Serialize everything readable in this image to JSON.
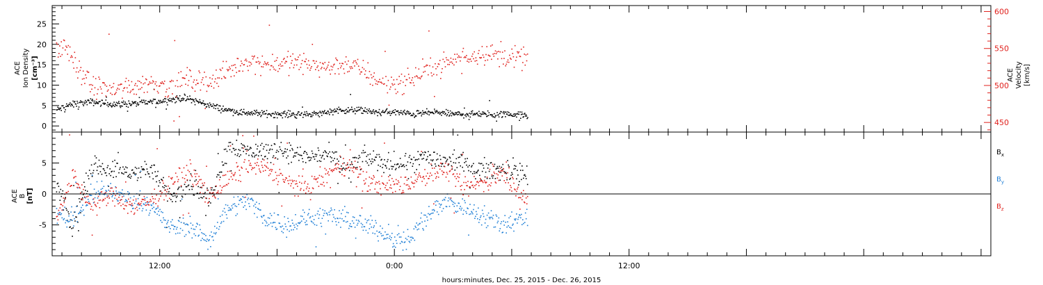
{
  "chart_data": [
    {
      "type": "scatter",
      "title": "",
      "xlabel": "hours:minutes, Dec. 25, 2015 - Dec. 26, 2015",
      "ylabel_left": [
        "ACE",
        "Ion Density",
        "[cm⁻³]"
      ],
      "ylabel_right": [
        "ACE",
        "Velocity",
        "[km/s]"
      ],
      "x_range_hours": [
        6.5,
        54.5
      ],
      "x_tick_labels": [
        {
          "hour": 12,
          "label": "12:00"
        },
        {
          "hour": 24,
          "label": "0:00"
        },
        {
          "hour": 36,
          "label": "12:00"
        }
      ],
      "left_axis": {
        "ylim": [
          -1.5,
          29.5
        ],
        "ticks": [
          0,
          5,
          10,
          15,
          20,
          25
        ],
        "color": "#000000"
      },
      "right_axis": {
        "ylim": [
          437,
          608
        ],
        "ticks": [
          450,
          500,
          550,
          600
        ],
        "color": "#e0201c"
      },
      "series": [
        {
          "key": "density",
          "axis": "left",
          "color": "#000000",
          "x_hours": [
            6.7,
            7.5,
            8.5,
            9.5,
            10.5,
            11.5,
            12.5,
            13.2,
            14.0,
            15.0,
            16.0,
            17.0,
            18.0,
            19.0,
            20.0,
            21.0,
            22.0,
            23.0,
            24.0,
            25.0,
            26.0,
            27.0,
            28.0,
            29.0,
            30.0,
            30.8
          ],
          "values": [
            4,
            5.5,
            6,
            5.5,
            5.5,
            6,
            6.5,
            7,
            6,
            4.5,
            3.5,
            3.2,
            3,
            3,
            3,
            4,
            4,
            3.5,
            3.5,
            3,
            3.5,
            3,
            3,
            3,
            3,
            2.5
          ]
        },
        {
          "key": "velocity",
          "axis": "right",
          "color": "#e0201c",
          "x_hours": [
            6.7,
            7.2,
            7.8,
            8.5,
            9.5,
            10.5,
            11.5,
            12.5,
            13.5,
            14.5,
            15.5,
            16.5,
            17.5,
            18.5,
            19.5,
            20.5,
            21.5,
            22.5,
            23.5,
            24.5,
            25.5,
            26.5,
            27.5,
            28.5,
            29.5,
            30.8
          ],
          "values": [
            545,
            555,
            520,
            500,
            495,
            500,
            505,
            500,
            510,
            505,
            520,
            535,
            530,
            532,
            530,
            525,
            530,
            520,
            500,
            505,
            520,
            530,
            540,
            545,
            540,
            535
          ]
        }
      ]
    },
    {
      "type": "scatter",
      "title": "",
      "xlabel": "hours:minutes, Dec. 25, 2015 - Dec. 26, 2015",
      "ylabel": [
        "ACE",
        "B",
        "[nT]"
      ],
      "x_range_hours": [
        6.5,
        54.5
      ],
      "ylim": [
        -10,
        10
      ],
      "ticks": [
        -5,
        0,
        5
      ],
      "zero_line": true,
      "legend_placement": "right",
      "series": [
        {
          "key": "bx",
          "name": "B",
          "subscript": "x",
          "color": "#000000",
          "x_hours": [
            6.7,
            7.5,
            8.5,
            9.5,
            10.5,
            11.5,
            12.5,
            13.5,
            14.5,
            15.5,
            16.5,
            17.5,
            18.5,
            19.5,
            20.5,
            21.5,
            22.5,
            23.5,
            24.5,
            25.5,
            26.5,
            27.5,
            28.5,
            29.5,
            30.8
          ],
          "values": [
            2,
            -5.5,
            4.5,
            4,
            3.5,
            4,
            -0.5,
            2,
            -1,
            8,
            7,
            7,
            7,
            6,
            6.5,
            4,
            6,
            5,
            5,
            6,
            5.5,
            5,
            4,
            4,
            3
          ]
        },
        {
          "key": "by",
          "name": "B",
          "subscript": "y",
          "color": "#1f7fd6",
          "x_hours": [
            6.7,
            7.5,
            8.5,
            9.5,
            10.5,
            11.5,
            12.5,
            13.5,
            14.5,
            15.5,
            16.5,
            17.5,
            18.5,
            19.5,
            20.5,
            21.5,
            22.5,
            23.5,
            24.5,
            25.5,
            26.5,
            27.5,
            28.5,
            29.5,
            30.8
          ],
          "values": [
            -3,
            -4,
            0,
            0.5,
            -1,
            -1.5,
            -5.5,
            -5,
            -7.5,
            -2,
            -1,
            -4,
            -5,
            -4,
            -3.5,
            -4,
            -5,
            -6,
            -8,
            -4,
            -1,
            -2,
            -3.5,
            -4.5,
            -4
          ]
        },
        {
          "key": "bz",
          "name": "B",
          "subscript": "z",
          "color": "#e0201c",
          "x_hours": [
            6.7,
            7.5,
            8.5,
            9.5,
            10.5,
            11.5,
            12.5,
            13.5,
            14.5,
            15.5,
            16.5,
            17.5,
            18.5,
            19.5,
            20.5,
            21.5,
            22.5,
            23.5,
            24.5,
            25.5,
            26.5,
            27.5,
            28.5,
            29.5,
            30.8
          ],
          "values": [
            -3.5,
            3,
            -2,
            0,
            -2,
            -1,
            1.5,
            4,
            -0.5,
            2.5,
            4.5,
            4,
            2,
            1,
            3,
            5,
            2,
            1.5,
            1.5,
            3,
            4,
            1,
            2,
            3.5,
            -1
          ]
        }
      ]
    }
  ]
}
